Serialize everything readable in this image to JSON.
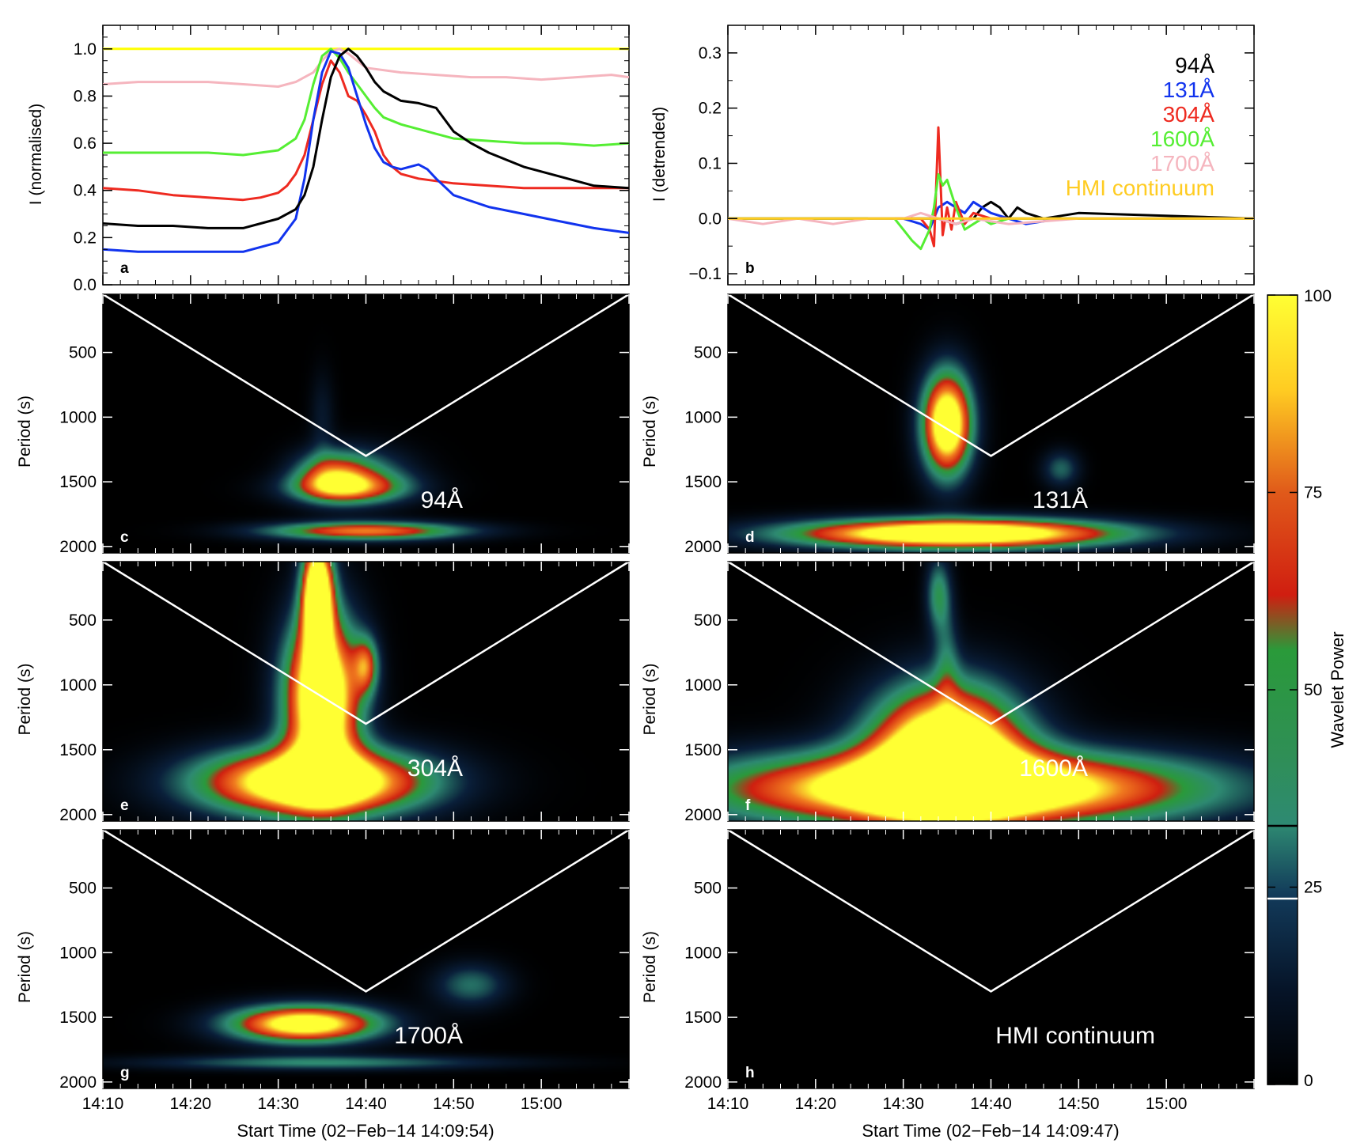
{
  "chart_data": [
    {
      "panel": "a",
      "type": "line",
      "ylabel": "I (normalised)",
      "ylim": [
        0,
        1.1
      ],
      "yticks": [
        "0.0",
        "0.2",
        "0.4",
        "0.6",
        "0.8",
        "1.0"
      ],
      "xlim_minutes": [
        0,
        60
      ],
      "series": [
        {
          "color": "#ffff00",
          "x": [
            0,
            60
          ],
          "y": [
            1.0,
            1.0
          ]
        },
        {
          "color": "#f5b5be",
          "x": [
            0,
            4,
            8,
            12,
            16,
            20,
            22,
            24,
            25,
            26,
            27,
            28,
            30,
            34,
            38,
            42,
            46,
            50,
            54,
            58,
            60
          ],
          "y": [
            0.85,
            0.86,
            0.86,
            0.86,
            0.85,
            0.84,
            0.86,
            0.9,
            0.95,
            0.99,
            1.0,
            0.98,
            0.92,
            0.9,
            0.89,
            0.88,
            0.88,
            0.87,
            0.88,
            0.89,
            0.88
          ]
        },
        {
          "color": "#55ee33",
          "x": [
            0,
            4,
            8,
            12,
            16,
            18,
            20,
            22,
            23,
            24,
            25,
            26,
            27,
            28,
            29,
            30,
            31,
            32,
            34,
            36,
            38,
            40,
            44,
            48,
            52,
            56,
            60
          ],
          "y": [
            0.56,
            0.56,
            0.56,
            0.56,
            0.55,
            0.56,
            0.57,
            0.62,
            0.7,
            0.85,
            0.97,
            1.0,
            0.96,
            0.9,
            0.85,
            0.8,
            0.75,
            0.71,
            0.68,
            0.66,
            0.64,
            0.62,
            0.61,
            0.6,
            0.6,
            0.59,
            0.6
          ]
        },
        {
          "color": "#ee2a20",
          "x": [
            0,
            4,
            8,
            12,
            16,
            18,
            20,
            21,
            22,
            23,
            24,
            25,
            26,
            27,
            28,
            29,
            30,
            31,
            32,
            33,
            34,
            36,
            38,
            40,
            44,
            48,
            52,
            56,
            60
          ],
          "y": [
            0.41,
            0.4,
            0.38,
            0.37,
            0.36,
            0.37,
            0.39,
            0.42,
            0.47,
            0.55,
            0.7,
            0.85,
            0.95,
            0.9,
            0.8,
            0.78,
            0.72,
            0.65,
            0.55,
            0.5,
            0.47,
            0.45,
            0.44,
            0.43,
            0.42,
            0.41,
            0.41,
            0.41,
            0.41
          ]
        },
        {
          "color": "#1133ee",
          "x": [
            0,
            4,
            8,
            12,
            16,
            20,
            22,
            23,
            24,
            25,
            26,
            27,
            28,
            29,
            30,
            31,
            32,
            33,
            34,
            36,
            37,
            38,
            40,
            44,
            48,
            52,
            56,
            60
          ],
          "y": [
            0.15,
            0.14,
            0.14,
            0.14,
            0.14,
            0.18,
            0.28,
            0.45,
            0.7,
            0.9,
            0.99,
            0.98,
            0.92,
            0.8,
            0.68,
            0.58,
            0.52,
            0.5,
            0.49,
            0.51,
            0.49,
            0.45,
            0.38,
            0.33,
            0.3,
            0.27,
            0.24,
            0.22
          ]
        },
        {
          "color": "#000000",
          "x": [
            0,
            4,
            8,
            12,
            16,
            18,
            20,
            22,
            23,
            24,
            25,
            26,
            27,
            28,
            29,
            30,
            31,
            32,
            33,
            34,
            36,
            38,
            40,
            42,
            44,
            48,
            52,
            56,
            60
          ],
          "y": [
            0.26,
            0.25,
            0.25,
            0.24,
            0.24,
            0.26,
            0.28,
            0.32,
            0.38,
            0.5,
            0.7,
            0.88,
            0.97,
            1.0,
            0.97,
            0.92,
            0.86,
            0.82,
            0.8,
            0.78,
            0.77,
            0.75,
            0.65,
            0.6,
            0.56,
            0.5,
            0.46,
            0.42,
            0.41
          ]
        }
      ]
    },
    {
      "panel": "b",
      "type": "line",
      "ylabel": "I (detrended)",
      "ylim": [
        -0.12,
        0.35
      ],
      "yticks": [
        "−0.1",
        "0.0",
        "0.1",
        "0.2",
        "0.3"
      ],
      "xlim_minutes": [
        0,
        60
      ],
      "legend": [
        "94Å",
        "131Å",
        "304Å",
        "1600Å",
        "1700Å",
        "HMI continuum"
      ],
      "legend_colors": [
        "#000000",
        "#1133ee",
        "#ee2a20",
        "#55ee33",
        "#f5b5be",
        "#ffcc22"
      ],
      "series": [
        {
          "color": "#000000",
          "x": [
            0,
            20,
            24,
            26,
            28,
            29,
            30,
            31,
            32,
            33,
            34,
            36,
            40,
            60
          ],
          "y": [
            0,
            0,
            0.0,
            -0.01,
            0.0,
            0.02,
            0.03,
            0.02,
            0.0,
            0.02,
            0.01,
            0.0,
            0.01,
            0.0
          ]
        },
        {
          "color": "#1133ee",
          "x": [
            0,
            20,
            22,
            23,
            24,
            25,
            26,
            27,
            28,
            29,
            30,
            32,
            34,
            38,
            60
          ],
          "y": [
            0,
            0,
            -0.01,
            -0.02,
            0.02,
            0.03,
            0.02,
            0.01,
            0.03,
            0.02,
            0.01,
            0.0,
            -0.01,
            0.0,
            0.0
          ]
        },
        {
          "color": "#ee2a20",
          "x": [
            0,
            20,
            22,
            23,
            23.5,
            24,
            24.5,
            25,
            25.5,
            26,
            27,
            28,
            30,
            34,
            60
          ],
          "y": [
            0,
            0,
            0.0,
            -0.02,
            -0.05,
            0.165,
            -0.03,
            0.02,
            -0.02,
            0.03,
            -0.01,
            0.01,
            0.0,
            0.0,
            0.0
          ]
        },
        {
          "color": "#55ee33",
          "x": [
            0,
            19,
            20,
            21,
            22,
            23,
            23.5,
            24,
            24.5,
            25,
            26,
            27,
            28,
            29,
            30,
            32,
            36,
            60
          ],
          "y": [
            0,
            0,
            -0.02,
            -0.04,
            -0.055,
            -0.02,
            0.02,
            0.08,
            0.06,
            0.07,
            0.02,
            -0.02,
            -0.01,
            0.0,
            -0.01,
            0.0,
            0.0,
            0.0
          ]
        },
        {
          "color": "#f5b5be",
          "x": [
            0,
            4,
            8,
            12,
            16,
            20,
            22,
            24,
            26,
            28,
            32,
            40,
            60
          ],
          "y": [
            0,
            -0.01,
            0.0,
            -0.01,
            0.0,
            0.0,
            0.01,
            0.0,
            -0.01,
            0.0,
            -0.01,
            0.0,
            0.0
          ]
        },
        {
          "color": "#ffcc22",
          "x": [
            0,
            60
          ],
          "y": [
            0.0,
            0.0
          ]
        }
      ]
    },
    {
      "panel": "c",
      "type": "heatmap",
      "ylabel": "Period (s)",
      "label": "94Å",
      "blobs": [
        [
          30,
          1880,
          8,
          50,
          0.85
        ],
        [
          26,
          1450,
          3,
          130,
          0.6
        ],
        [
          28,
          1550,
          5,
          80,
          0.55
        ],
        [
          30,
          1450,
          4,
          150,
          0.35
        ],
        [
          25,
          1000,
          1,
          250,
          0.15
        ]
      ]
    },
    {
      "panel": "d",
      "type": "heatmap",
      "ylabel": "Period (s)",
      "label": "131Å",
      "blobs": [
        [
          26,
          1900,
          13,
          80,
          1.4
        ],
        [
          25,
          1050,
          2,
          280,
          1.3
        ],
        [
          38,
          1400,
          1.5,
          100,
          0.33
        ]
      ]
    },
    {
      "panel": "e",
      "type": "heatmap",
      "ylabel": "Period (s)",
      "label": "304Å",
      "blobs": [
        [
          24,
          1750,
          9,
          180,
          1.4
        ],
        [
          25,
          1100,
          3,
          450,
          1.4
        ],
        [
          24.5,
          300,
          1.2,
          300,
          1.4
        ],
        [
          30,
          850,
          1,
          150,
          0.6
        ]
      ]
    },
    {
      "panel": "f",
      "type": "heatmap",
      "ylabel": "Period (s)",
      "label": "1600Å",
      "blobs": [
        [
          26,
          1800,
          19,
          200,
          1.4
        ],
        [
          25,
          1500,
          6,
          350,
          1.4
        ],
        [
          24,
          300,
          1,
          200,
          0.45
        ],
        [
          25,
          800,
          1,
          300,
          0.25
        ]
      ]
    },
    {
      "panel": "g",
      "type": "heatmap",
      "ylabel": "Period (s)",
      "label": "1700Å",
      "blobs": [
        [
          23,
          1550,
          6,
          100,
          1.2
        ],
        [
          25,
          1850,
          14,
          40,
          0.4
        ],
        [
          42,
          1250,
          3,
          120,
          0.35
        ]
      ]
    },
    {
      "panel": "h",
      "type": "heatmap",
      "ylabel": "Period (s)",
      "label": "HMI continuum",
      "blobs": []
    }
  ],
  "period_ticks": [
    "500",
    "1000",
    "1500",
    "2000"
  ],
  "time_ticks": [
    "14:10",
    "14:20",
    "14:30",
    "14:40",
    "14:50",
    "15:00"
  ],
  "left_xlabel": "Start Time (02−Feb−14 14:09:54)",
  "right_xlabel": "Start Time (02−Feb−14 14:09:47)",
  "colorbar": {
    "label": "Wavelet Power",
    "ticks": [
      "0",
      "25",
      "50",
      "75",
      "100"
    ]
  },
  "colors": {
    "cmap": [
      "#000000",
      "#0a1f3a",
      "#2e8a72",
      "#2a9a3a",
      "#d01e10",
      "#ffff33"
    ]
  }
}
